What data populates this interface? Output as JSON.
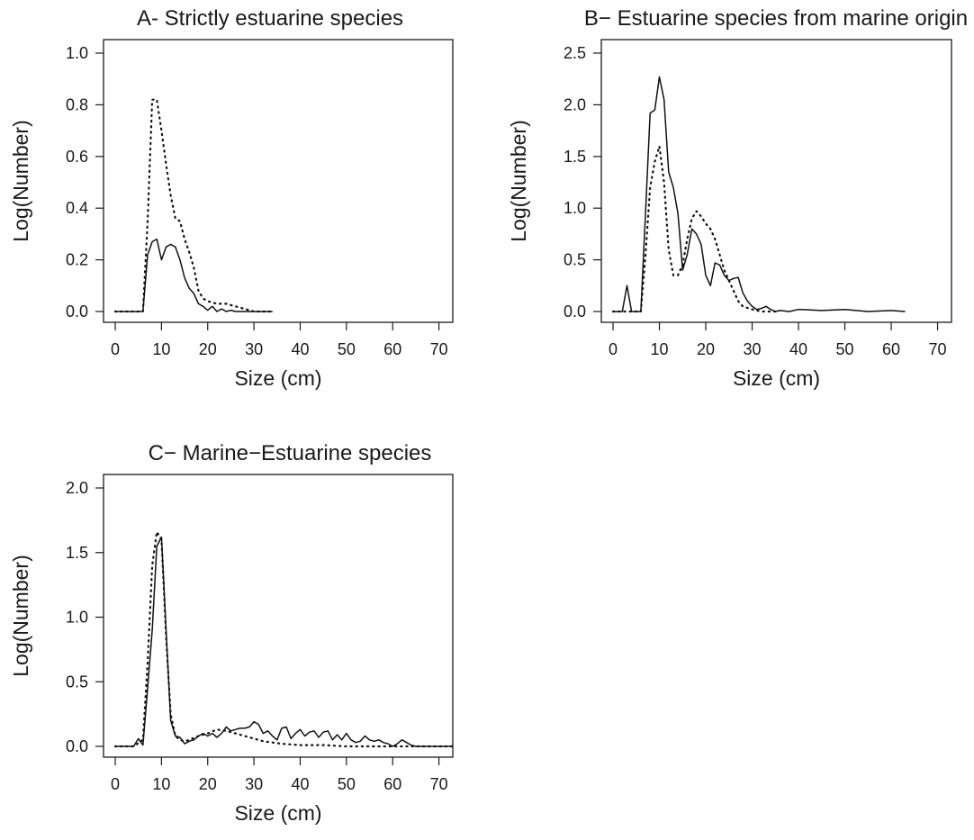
{
  "chart_data": [
    {
      "type": "line",
      "title": "A- Strictly estuarine species",
      "xlabel": "Size (cm)",
      "ylabel": "Log(Number)",
      "xlim": [
        0,
        73
      ],
      "ylim": [
        0,
        1.0
      ],
      "xticks": [
        0,
        10,
        20,
        30,
        40,
        50,
        60,
        70
      ],
      "yticks": [
        "0.0",
        "0.2",
        "0.4",
        "0.6",
        "0.8",
        "1.0"
      ],
      "grid": false,
      "series": [
        {
          "style": "solid",
          "x": [
            0,
            2,
            4,
            6,
            7,
            8,
            9,
            10,
            11,
            12,
            13,
            14,
            15,
            16,
            17,
            18,
            19,
            20,
            21,
            22,
            23,
            24,
            25,
            26,
            28,
            30,
            32,
            34
          ],
          "y": [
            0,
            0,
            0,
            0,
            0.22,
            0.27,
            0.28,
            0.2,
            0.25,
            0.26,
            0.25,
            0.2,
            0.13,
            0.09,
            0.07,
            0.03,
            0.02,
            0.005,
            0.02,
            0.0,
            0.01,
            0.0,
            0.005,
            0.0,
            0.0,
            0.0,
            0.0,
            0.0
          ]
        },
        {
          "style": "dotted",
          "x": [
            0,
            2,
            4,
            6,
            7,
            8,
            9,
            10,
            11,
            12,
            13,
            14,
            15,
            16,
            17,
            18,
            19,
            20,
            22,
            24,
            26,
            28,
            30,
            32,
            34
          ],
          "y": [
            0,
            0,
            0,
            0,
            0.35,
            0.82,
            0.82,
            0.7,
            0.57,
            0.45,
            0.36,
            0.35,
            0.28,
            0.23,
            0.17,
            0.08,
            0.05,
            0.04,
            0.03,
            0.03,
            0.02,
            0.01,
            0.0,
            0.0,
            0.0
          ]
        }
      ]
    },
    {
      "type": "line",
      "title": "B− Estuarine species from marine origin",
      "xlabel": "Size (cm)",
      "ylabel": "Log(Number)",
      "xlim": [
        0,
        73
      ],
      "ylim": [
        0,
        2.5
      ],
      "xticks": [
        0,
        10,
        20,
        30,
        40,
        50,
        60,
        70
      ],
      "yticks": [
        "0.0",
        "0.5",
        "1.0",
        "1.5",
        "2.0",
        "2.5"
      ],
      "grid": false,
      "series": [
        {
          "style": "solid",
          "x": [
            0,
            2,
            3,
            4,
            6,
            7,
            8,
            9,
            10,
            11,
            12,
            13,
            14,
            15,
            16,
            17,
            18,
            19,
            20,
            21,
            22,
            23,
            24,
            25,
            26,
            27,
            28,
            29,
            30,
            31,
            32,
            33,
            34,
            35,
            36,
            38,
            40,
            45,
            50,
            55,
            60,
            63
          ],
          "y": [
            0,
            0,
            0.25,
            0,
            0,
            0.95,
            1.92,
            1.95,
            2.27,
            2.05,
            1.35,
            1.2,
            0.95,
            0.4,
            0.55,
            0.8,
            0.75,
            0.65,
            0.35,
            0.25,
            0.47,
            0.45,
            0.35,
            0.3,
            0.32,
            0.33,
            0.18,
            0.1,
            0.05,
            0.02,
            0.03,
            0.05,
            0.02,
            0.0,
            0.01,
            0.0,
            0.02,
            0.01,
            0.02,
            0.0,
            0.01,
            0.0
          ]
        },
        {
          "style": "dotted",
          "x": [
            0,
            2,
            4,
            6,
            7,
            8,
            9,
            10,
            11,
            12,
            13,
            14,
            15,
            16,
            17,
            18,
            19,
            20,
            21,
            22,
            23,
            24,
            25,
            26,
            27,
            28,
            30,
            32,
            35
          ],
          "y": [
            0,
            0,
            0,
            0,
            0.55,
            1.2,
            1.45,
            1.6,
            1.25,
            0.6,
            0.35,
            0.35,
            0.45,
            0.7,
            0.9,
            0.97,
            0.92,
            0.85,
            0.8,
            0.7,
            0.55,
            0.4,
            0.3,
            0.2,
            0.1,
            0.05,
            0.02,
            0.0,
            0.0
          ]
        }
      ]
    },
    {
      "type": "line",
      "title": "C− Marine−Estuarine species",
      "xlabel": "Size (cm)",
      "ylabel": "Log(Number)",
      "xlim": [
        0,
        73
      ],
      "ylim": [
        0,
        2.0
      ],
      "xticks": [
        0,
        10,
        20,
        30,
        40,
        50,
        60,
        70
      ],
      "yticks": [
        "0.0",
        "0.5",
        "1.0",
        "1.5",
        "2.0"
      ],
      "grid": false,
      "series": [
        {
          "style": "solid",
          "x": [
            0,
            2,
            4,
            5,
            6,
            7,
            8,
            9,
            10,
            11,
            12,
            13,
            14,
            15,
            16,
            17,
            18,
            19,
            20,
            21,
            22,
            23,
            24,
            25,
            26,
            27,
            28,
            29,
            30,
            31,
            32,
            33,
            34,
            35,
            36,
            37,
            38,
            39,
            40,
            41,
            42,
            43,
            44,
            45,
            46,
            47,
            48,
            49,
            50,
            51,
            52,
            53,
            54,
            55,
            56,
            57,
            58,
            59,
            60,
            61,
            62,
            63,
            64,
            65,
            66,
            68,
            70,
            73
          ],
          "y": [
            0,
            0,
            0,
            0.06,
            0.01,
            0.45,
            0.9,
            1.55,
            1.62,
            0.9,
            0.2,
            0.08,
            0.07,
            0.02,
            0.04,
            0.05,
            0.08,
            0.1,
            0.08,
            0.1,
            0.07,
            0.1,
            0.15,
            0.12,
            0.13,
            0.14,
            0.14,
            0.15,
            0.19,
            0.17,
            0.1,
            0.12,
            0.08,
            0.05,
            0.14,
            0.15,
            0.06,
            0.1,
            0.13,
            0.08,
            0.11,
            0.12,
            0.07,
            0.11,
            0.12,
            0.05,
            0.09,
            0.05,
            0.1,
            0.05,
            0.03,
            0.04,
            0.08,
            0.05,
            0.04,
            0.05,
            0.03,
            0.02,
            0.0,
            0.02,
            0.05,
            0.03,
            0.01,
            0.0,
            0.0,
            0.0,
            0.0,
            0.0
          ]
        },
        {
          "style": "dotted",
          "x": [
            0,
            2,
            4,
            6,
            7,
            8,
            9,
            10,
            11,
            12,
            13,
            14,
            15,
            16,
            18,
            20,
            22,
            24,
            26,
            28,
            30,
            32,
            34,
            36,
            40,
            45,
            50,
            55,
            60,
            65,
            70,
            73
          ],
          "y": [
            0,
            0,
            0,
            0.05,
            0.65,
            1.4,
            1.66,
            1.6,
            0.85,
            0.25,
            0.08,
            0.05,
            0.04,
            0.05,
            0.08,
            0.1,
            0.13,
            0.12,
            0.1,
            0.08,
            0.06,
            0.04,
            0.03,
            0.02,
            0.01,
            0.01,
            0.0,
            0.0,
            0.0,
            0.0,
            0.0,
            0.0
          ]
        }
      ]
    }
  ]
}
